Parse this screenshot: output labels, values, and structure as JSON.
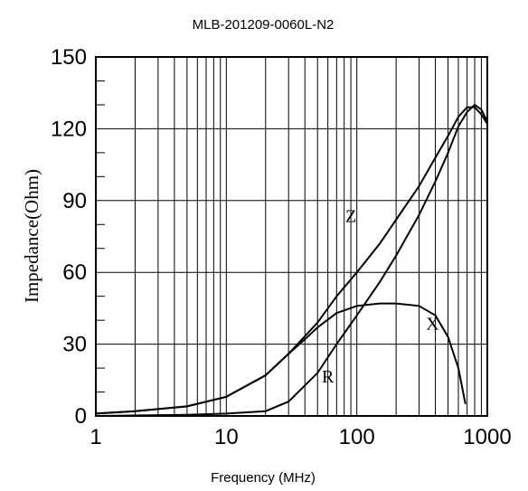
{
  "chart_data": {
    "type": "line",
    "title": "MLB-201209-0060L-N2",
    "xlabel": "Frequency (MHz)",
    "ylabel": "Impedance(Ohm)",
    "xscale": "log",
    "xlim": [
      1,
      1000
    ],
    "ylim": [
      0,
      150
    ],
    "x_ticks": [
      1,
      10,
      100,
      1000
    ],
    "x_tick_labels": [
      "1",
      "10",
      "100",
      "1000"
    ],
    "y_ticks": [
      0,
      30,
      60,
      90,
      120,
      150
    ],
    "y_tick_labels": [
      "0",
      "30",
      "60",
      "90",
      "120",
      "150"
    ],
    "grid": true,
    "series": [
      {
        "name": "Z",
        "x": [
          1,
          2,
          5,
          10,
          20,
          30,
          50,
          70,
          100,
          150,
          200,
          300,
          400,
          500,
          600,
          700,
          800,
          900,
          1000
        ],
        "y": [
          1,
          2,
          4,
          8,
          17,
          26,
          39,
          50,
          60,
          72,
          82,
          96,
          108,
          117,
          125,
          129,
          129,
          126,
          122
        ]
      },
      {
        "name": "R",
        "x": [
          1,
          5,
          10,
          20,
          30,
          50,
          70,
          100,
          150,
          200,
          300,
          400,
          500,
          600,
          700,
          800,
          900,
          1000
        ],
        "y": [
          0,
          0.5,
          1,
          2,
          6,
          18,
          30,
          42,
          56,
          67,
          84,
          98,
          110,
          121,
          127,
          130,
          128,
          123
        ]
      },
      {
        "name": "X",
        "x": [
          1,
          2,
          5,
          10,
          20,
          30,
          40,
          50,
          70,
          100,
          150,
          200,
          300,
          400,
          500,
          600,
          680
        ],
        "y": [
          1,
          2,
          4,
          8,
          17,
          26,
          32,
          37,
          43,
          46,
          47,
          47,
          46,
          42,
          33,
          20,
          5
        ]
      }
    ],
    "annotations": [
      {
        "text": "Z",
        "x": 90,
        "y": 81
      },
      {
        "text": "R",
        "x": 60,
        "y": 14
      },
      {
        "text": "X",
        "x": 380,
        "y": 36
      }
    ]
  }
}
